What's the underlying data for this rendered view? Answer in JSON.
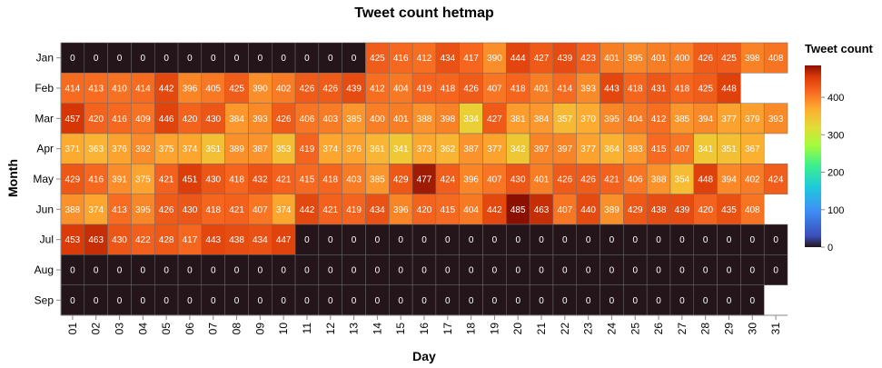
{
  "chart_data": {
    "type": "heatmap",
    "title": "Tweet count hetmap",
    "xlabel": "Day",
    "ylabel": "Month",
    "x_categories": [
      "01",
      "02",
      "03",
      "04",
      "05",
      "06",
      "07",
      "08",
      "09",
      "10",
      "11",
      "12",
      "13",
      "14",
      "15",
      "16",
      "17",
      "18",
      "19",
      "20",
      "21",
      "22",
      "23",
      "24",
      "25",
      "26",
      "27",
      "28",
      "29",
      "30",
      "31"
    ],
    "y_categories": [
      "Jan",
      "Feb",
      "Mar",
      "Apr",
      "May",
      "Jun",
      "Jul",
      "Aug",
      "Sep"
    ],
    "values": [
      [
        0,
        0,
        0,
        0,
        0,
        0,
        0,
        0,
        0,
        0,
        0,
        0,
        0,
        425,
        416,
        412,
        434,
        417,
        390,
        444,
        427,
        439,
        423,
        401,
        395,
        401,
        400,
        426,
        425,
        398,
        408
      ],
      [
        414,
        413,
        410,
        414,
        442,
        396,
        405,
        425,
        390,
        402,
        426,
        426,
        439,
        412,
        404,
        419,
        418,
        426,
        407,
        418,
        401,
        414,
        393,
        443,
        418,
        431,
        418,
        425,
        448,
        null,
        null
      ],
      [
        457,
        420,
        416,
        409,
        446,
        420,
        430,
        384,
        393,
        426,
        406,
        403,
        385,
        400,
        401,
        388,
        398,
        334,
        427,
        381,
        384,
        357,
        370,
        395,
        404,
        412,
        385,
        394,
        377,
        379,
        393
      ],
      [
        371,
        363,
        376,
        392,
        375,
        374,
        351,
        389,
        387,
        353,
        419,
        374,
        376,
        361,
        341,
        373,
        362,
        387,
        377,
        342,
        397,
        397,
        377,
        364,
        383,
        415,
        407,
        341,
        351,
        367,
        null
      ],
      [
        429,
        416,
        391,
        375,
        421,
        451,
        430,
        418,
        432,
        421,
        415,
        418,
        403,
        385,
        429,
        477,
        424,
        396,
        407,
        430,
        401,
        426,
        426,
        421,
        406,
        388,
        354,
        448,
        394,
        402,
        424
      ],
      [
        388,
        374,
        413,
        395,
        426,
        430,
        418,
        421,
        407,
        374,
        442,
        421,
        419,
        434,
        396,
        420,
        415,
        404,
        442,
        485,
        463,
        407,
        440,
        389,
        429,
        438,
        439,
        420,
        435,
        408,
        null
      ],
      [
        453,
        463,
        430,
        422,
        428,
        417,
        443,
        438,
        434,
        447,
        0,
        0,
        0,
        0,
        0,
        0,
        0,
        0,
        0,
        0,
        0,
        0,
        0,
        0,
        0,
        0,
        0,
        0,
        0,
        0,
        0
      ],
      [
        0,
        0,
        0,
        0,
        0,
        0,
        0,
        0,
        0,
        0,
        0,
        0,
        0,
        0,
        0,
        0,
        0,
        0,
        0,
        0,
        0,
        0,
        0,
        0,
        0,
        0,
        0,
        0,
        0,
        0,
        0
      ],
      [
        0,
        0,
        0,
        0,
        0,
        0,
        0,
        0,
        0,
        0,
        0,
        0,
        0,
        0,
        0,
        0,
        0,
        0,
        0,
        0,
        0,
        0,
        0,
        0,
        0,
        0,
        0,
        0,
        0,
        0,
        null
      ]
    ],
    "color_scale": "turbo-dark",
    "colorbar": {
      "title": "Tweet count",
      "range": [
        0,
        485
      ],
      "ticks": [
        0,
        100,
        200,
        300,
        400
      ]
    },
    "legend_placement": "right"
  }
}
